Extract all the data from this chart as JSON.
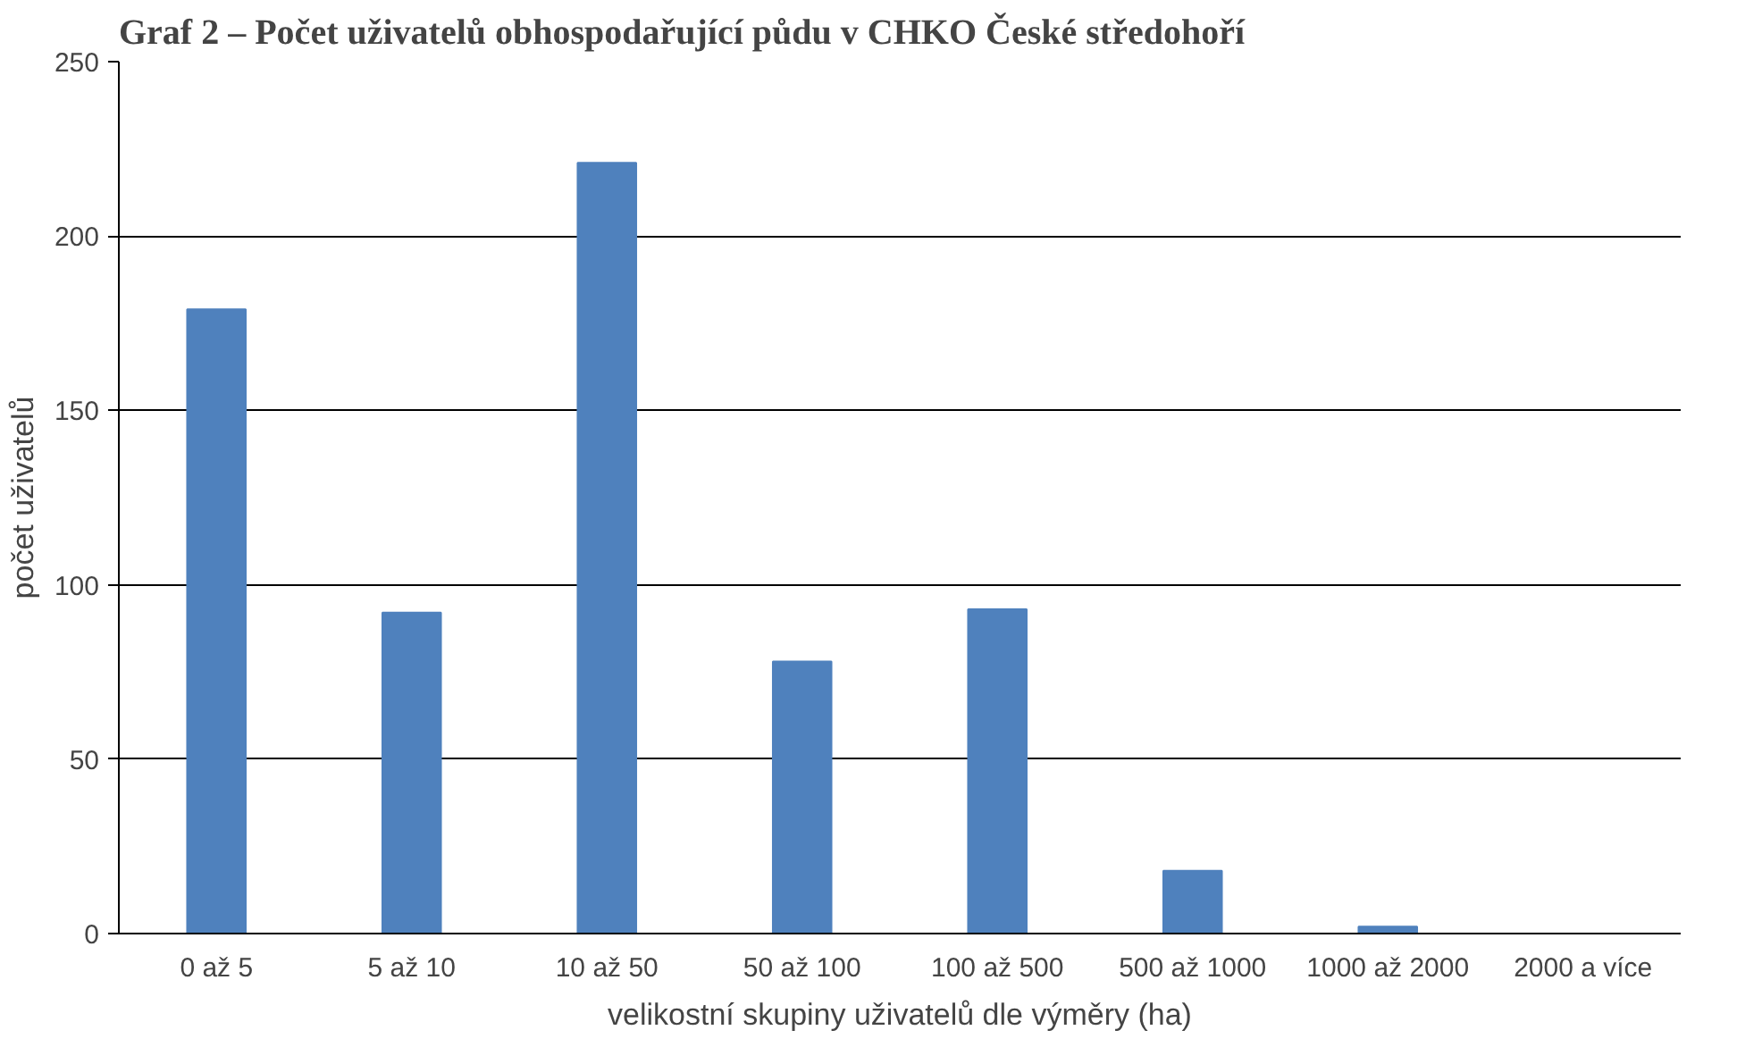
{
  "chart_data": {
    "type": "bar",
    "title": "Graf 2 – Počet uživatelů obhospodařující půdu v CHKO České středohoří",
    "categories": [
      "0 až 5",
      "5 až 10",
      "10 až 50",
      "50 až 100",
      "100 až 500",
      "500 až 1000",
      "1000 až 2000",
      "2000 a více"
    ],
    "values": [
      179,
      92,
      221,
      78,
      93,
      18,
      2,
      0
    ],
    "color": "#4f81bd",
    "ylim": [
      0,
      250
    ],
    "yticks": [
      0,
      50,
      100,
      150,
      200,
      250
    ],
    "grid": "y",
    "xlabel": "velikostní skupiny uživatelů dle výměry (ha)",
    "ylabel": "počet uživatelů"
  }
}
